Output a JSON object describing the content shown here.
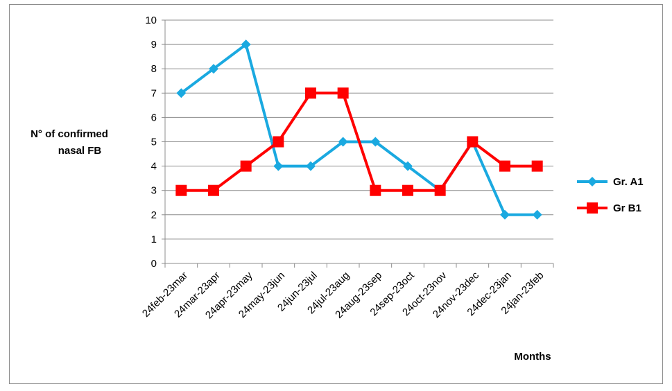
{
  "chart_data": {
    "type": "line",
    "categories": [
      "24feb-23mar",
      "24mar-23apr",
      "24apr-23may",
      "24may-23jun",
      "24jun-23jul",
      "24jul-23aug",
      "24aug-23sep",
      "24sep-23oct",
      "24oct-23nov",
      "24nov-23dec",
      "24dec-23jan",
      "24jan-23feb"
    ],
    "series": [
      {
        "name": "Gr. A1",
        "color": "#1aa9e0",
        "marker": "diamond",
        "values": [
          7,
          8,
          9,
          4,
          4,
          5,
          5,
          4,
          3,
          5,
          2,
          2
        ]
      },
      {
        "name": "Gr B1",
        "color": "#ff0000",
        "marker": "square",
        "values": [
          3,
          3,
          4,
          5,
          7,
          7,
          3,
          3,
          3,
          5,
          4,
          4
        ]
      }
    ],
    "ylabel_lines": [
      "N° of confirmed",
      "nasal FB"
    ],
    "xlabel": "Months",
    "ylim": [
      0,
      10
    ],
    "yticks": [
      0,
      1,
      2,
      3,
      4,
      5,
      6,
      7,
      8,
      9,
      10
    ],
    "grid": true,
    "legend_position": "right"
  }
}
